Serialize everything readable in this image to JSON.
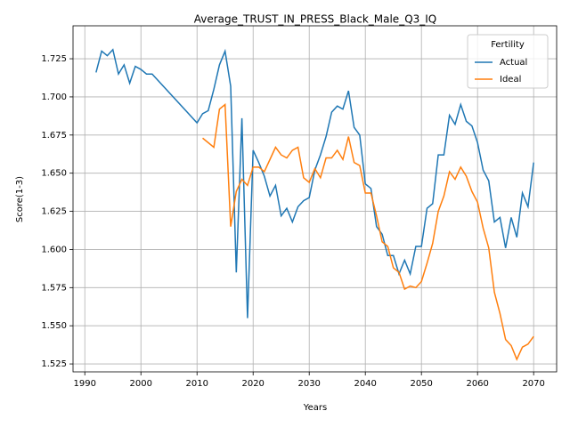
{
  "chart_data": {
    "type": "line",
    "title": "Average_TRUST_IN_PRESS_Black_Male_Q3_IQ",
    "x_label": "Years",
    "y_label": "Score(1-3)",
    "xlim": [
      1987.9,
      2074.1
    ],
    "ylim": [
      1.5198,
      1.7466
    ],
    "xticks": [
      1990,
      2000,
      2010,
      2020,
      2030,
      2040,
      2050,
      2060,
      2070
    ],
    "yticks": [
      1.525,
      {
        "value": 1.55,
        "label": "1.550"
      },
      1.575,
      {
        "value": 1.6,
        "label": "1.600"
      },
      1.625,
      {
        "value": 1.65,
        "label": "1.650"
      },
      1.675,
      {
        "value": 1.7,
        "label": "1.700"
      },
      1.725
    ],
    "grid": true,
    "legend_title": "Fertility",
    "legend_position": "upper right",
    "series": [
      {
        "name": "Actual",
        "color": "#1f77b4",
        "x": [
          1992,
          1993,
          1994,
          1995,
          1996,
          1997,
          1998,
          1999,
          2000,
          2001,
          2002,
          2010,
          2011,
          2012,
          2013,
          2014,
          2015,
          2016,
          2017,
          2018,
          2019,
          2020,
          2021,
          2022,
          2023,
          2024,
          2025,
          2026,
          2027,
          2028,
          2029,
          2030,
          2031,
          2032,
          2033,
          2034,
          2035,
          2036,
          2037,
          2038,
          2039,
          2040,
          2041,
          2042,
          2043,
          2044,
          2045,
          2046,
          2047,
          2048,
          2049,
          2050,
          2051,
          2052,
          2053,
          2054,
          2055,
          2056,
          2057,
          2058,
          2059,
          2060,
          2061,
          2062,
          2063,
          2064,
          2065,
          2066,
          2067,
          2068,
          2069,
          2070
        ],
        "values": [
          1.716,
          1.73,
          1.727,
          1.731,
          1.715,
          1.721,
          1.709,
          1.72,
          1.718,
          1.715,
          1.715,
          1.683,
          1.689,
          1.691,
          1.705,
          1.721,
          1.73,
          1.707,
          1.585,
          1.686,
          1.555,
          1.665,
          1.657,
          1.648,
          1.635,
          1.642,
          1.622,
          1.627,
          1.618,
          1.628,
          1.632,
          1.634,
          1.652,
          1.662,
          1.674,
          1.69,
          1.694,
          1.692,
          1.704,
          1.68,
          1.675,
          1.643,
          1.64,
          1.615,
          1.61,
          1.596,
          1.596,
          1.584,
          1.593,
          1.584,
          1.602,
          1.602,
          1.627,
          1.63,
          1.662,
          1.662,
          1.688,
          1.682,
          1.695,
          1.684,
          1.681,
          1.67,
          1.652,
          1.645,
          1.618,
          1.621,
          1.601,
          1.621,
          1.608,
          1.637,
          1.628,
          1.657
        ]
      },
      {
        "name": "Ideal",
        "color": "#ff7f0e",
        "x": [
          2011,
          2012,
          2013,
          2014,
          2015,
          2016,
          2017,
          2018,
          2019,
          2020,
          2021,
          2022,
          2023,
          2024,
          2025,
          2026,
          2027,
          2028,
          2029,
          2030,
          2031,
          2032,
          2033,
          2034,
          2035,
          2036,
          2037,
          2038,
          2039,
          2040,
          2041,
          2042,
          2043,
          2044,
          2045,
          2046,
          2047,
          2048,
          2049,
          2050,
          2051,
          2052,
          2053,
          2054,
          2055,
          2056,
          2057,
          2058,
          2059,
          2060,
          2061,
          2062,
          2063,
          2064,
          2065,
          2066,
          2067,
          2068,
          2069,
          2070
        ],
        "values": [
          1.673,
          1.67,
          1.667,
          1.692,
          1.695,
          1.615,
          1.638,
          1.646,
          1.642,
          1.654,
          1.654,
          1.651,
          1.659,
          1.667,
          1.662,
          1.66,
          1.665,
          1.667,
          1.647,
          1.644,
          1.653,
          1.647,
          1.66,
          1.66,
          1.665,
          1.659,
          1.674,
          1.657,
          1.655,
          1.637,
          1.637,
          1.622,
          1.605,
          1.602,
          1.588,
          1.585,
          1.574,
          1.576,
          1.575,
          1.579,
          1.591,
          1.604,
          1.625,
          1.635,
          1.651,
          1.646,
          1.654,
          1.648,
          1.638,
          1.631,
          1.614,
          1.601,
          1.572,
          1.558,
          1.541,
          1.537,
          1.528,
          1.536,
          1.538,
          1.543
        ]
      }
    ]
  }
}
